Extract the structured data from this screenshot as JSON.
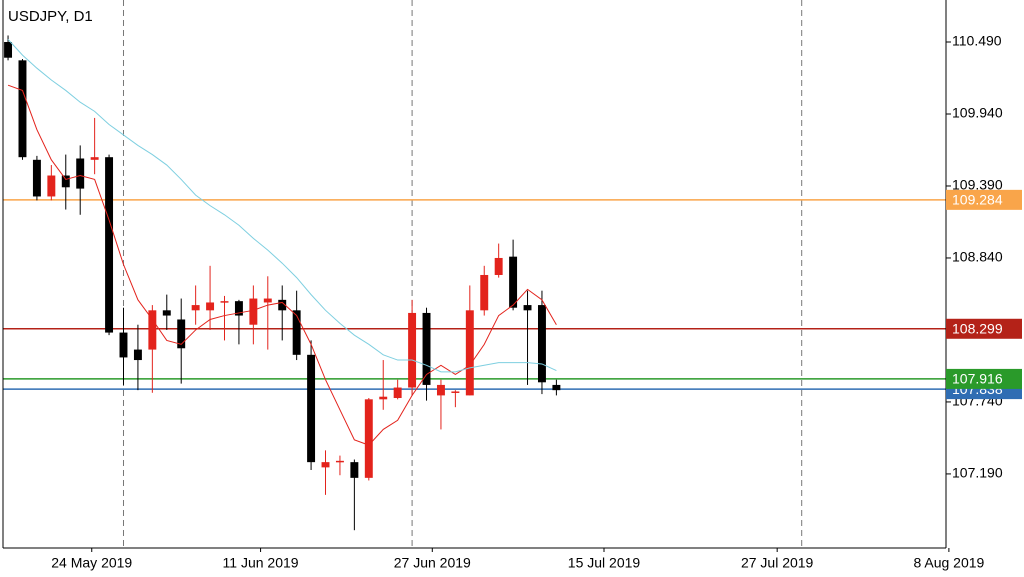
{
  "chart_data": {
    "type": "candlestick",
    "title": "USDJPY, D1",
    "up_color": "#e3231c",
    "down_color": "#000000",
    "open": [
      110.49,
      110.35,
      109.59,
      109.31,
      109.47,
      109.6,
      109.59,
      109.61,
      108.27,
      108.14,
      108.14,
      108.44,
      108.37,
      108.44,
      108.44,
      108.5,
      108.51,
      108.33,
      108.5,
      108.52,
      108.44,
      108.1,
      107.24,
      107.28,
      107.28,
      107.16,
      107.76,
      107.77,
      107.85,
      108.42,
      107.79,
      107.81,
      107.79,
      108.44,
      108.71,
      108.85,
      108.48,
      108.48,
      107.87
    ],
    "high": [
      110.54,
      110.36,
      109.62,
      109.55,
      109.63,
      109.7,
      109.91,
      109.63,
      108.46,
      108.33,
      108.48,
      108.56,
      108.53,
      108.63,
      108.78,
      108.55,
      108.52,
      108.63,
      108.7,
      108.63,
      108.59,
      108.21,
      107.37,
      107.33,
      107.3,
      107.77,
      108.06,
      107.91,
      108.52,
      108.46,
      107.91,
      107.83,
      108.63,
      108.78,
      108.95,
      108.98,
      108.59,
      108.59,
      107.91
    ],
    "low": [
      110.35,
      109.59,
      109.28,
      109.28,
      109.21,
      109.17,
      109.48,
      108.25,
      107.87,
      107.83,
      107.81,
      108.29,
      107.88,
      108.33,
      108.29,
      108.21,
      108.18,
      108.18,
      108.14,
      108.21,
      108.06,
      107.22,
      107.03,
      107.18,
      106.76,
      107.14,
      107.68,
      107.76,
      107.79,
      107.75,
      107.53,
      107.7,
      107.79,
      108.4,
      108.69,
      108.44,
      107.87,
      107.8,
      107.79
    ],
    "close": [
      110.37,
      109.61,
      109.31,
      109.47,
      109.38,
      109.37,
      109.61,
      108.27,
      108.08,
      108.06,
      108.44,
      108.4,
      108.15,
      108.48,
      108.5,
      108.51,
      108.4,
      108.53,
      108.53,
      108.44,
      108.1,
      107.28,
      107.28,
      107.29,
      107.16,
      107.76,
      107.78,
      107.85,
      108.42,
      107.87,
      107.87,
      107.82,
      108.44,
      108.71,
      108.84,
      108.46,
      108.44,
      107.89,
      107.83
    ],
    "lines": [
      {
        "color": "#e3231c",
        "values": [
          110.16,
          110.12,
          109.82,
          109.59,
          109.44,
          109.47,
          109.44,
          109.13,
          108.79,
          108.52,
          108.37,
          108.21,
          108.18,
          108.29,
          108.37,
          108.4,
          108.42,
          108.44,
          108.48,
          108.5,
          108.4,
          108.18,
          107.91,
          107.68,
          107.45,
          107.41,
          107.53,
          107.6,
          107.79,
          107.95,
          108.02,
          107.95,
          108.02,
          108.18,
          108.4,
          108.48,
          108.6,
          108.52,
          108.33
        ]
      },
      {
        "color": "#7ecfe0",
        "values": [
          110.51,
          110.39,
          110.29,
          110.2,
          110.12,
          110.03,
          109.96,
          109.86,
          109.78,
          109.7,
          109.63,
          109.55,
          109.44,
          109.32,
          109.24,
          109.17,
          109.09,
          108.99,
          108.9,
          108.8,
          108.69,
          108.56,
          108.44,
          108.34,
          108.25,
          108.18,
          108.1,
          108.06,
          108.06,
          108.02,
          107.97,
          107.97,
          108.0,
          108.02,
          108.04,
          108.04,
          108.04,
          108.03,
          107.98
        ]
      }
    ],
    "levels": [
      {
        "value": 109.284,
        "color": "#f9a54a"
      },
      {
        "value": 108.299,
        "color": "#b42218"
      },
      {
        "value": 107.838,
        "color": "#2f6db3"
      },
      {
        "value": 107.916,
        "color": "#2a9a2a"
      }
    ],
    "ylim": [
      106.624,
      110.811
    ],
    "yticks": [
      {
        "value": 110.49,
        "label": "110.490"
      },
      {
        "value": 109.94,
        "label": "109.940"
      },
      {
        "value": 109.39,
        "label": "109.390"
      },
      {
        "value": 108.84,
        "label": "108.840"
      },
      {
        "value": 107.74,
        "label": "107.740"
      },
      {
        "value": 107.19,
        "label": "107.190"
      }
    ],
    "xlim": [
      -0.35,
      65
    ],
    "xticks": [
      {
        "value": 5.8,
        "label": "24 May 2019"
      },
      {
        "value": 17.5,
        "label": "11 Jun 2019"
      },
      {
        "value": 29.4,
        "label": "27 Jun 2019"
      },
      {
        "value": 41.3,
        "label": "15 Jul 2019"
      },
      {
        "value": 53.3,
        "label": "27 Jul 2019"
      },
      {
        "value": 65.2,
        "label": "8 Aug 2019"
      }
    ],
    "separators": [
      8,
      28,
      55
    ]
  }
}
